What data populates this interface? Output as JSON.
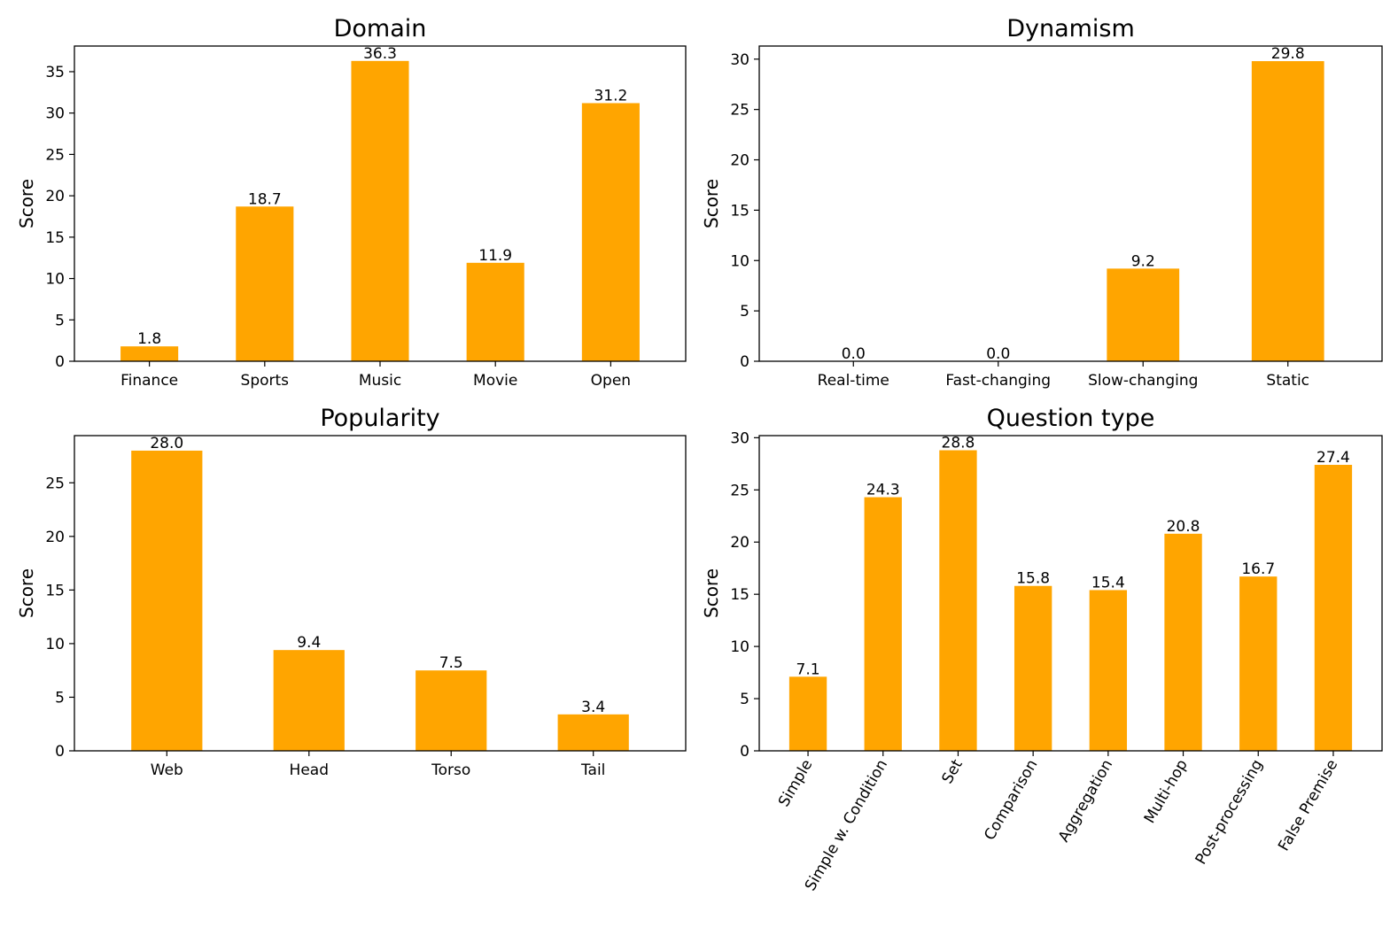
{
  "chart_data": [
    {
      "type": "bar",
      "title": "Domain",
      "xlabel": "",
      "ylabel": "Score",
      "categories": [
        "Finance",
        "Sports",
        "Music",
        "Movie",
        "Open"
      ],
      "values": [
        1.8,
        18.7,
        36.3,
        11.9,
        31.2
      ],
      "value_labels": [
        "1.8",
        "18.7",
        "36.3",
        "11.9",
        "31.2"
      ],
      "ylim": [
        0,
        38.1
      ],
      "yticks": [
        0,
        5,
        10,
        15,
        20,
        25,
        30,
        35
      ],
      "xtick_rotation": 0,
      "bar_color": "#FFA500",
      "grid": false,
      "legend": "none"
    },
    {
      "type": "bar",
      "title": "Dynamism",
      "xlabel": "",
      "ylabel": "Score",
      "categories": [
        "Real-time",
        "Fast-changing",
        "Slow-changing",
        "Static"
      ],
      "values": [
        0.0,
        0.0,
        9.2,
        29.8
      ],
      "value_labels": [
        "0.0",
        "0.0",
        "9.2",
        "29.8"
      ],
      "ylim": [
        0,
        31.3
      ],
      "yticks": [
        0,
        5,
        10,
        15,
        20,
        25,
        30
      ],
      "xtick_rotation": 0,
      "bar_color": "#FFA500",
      "grid": false,
      "legend": "none"
    },
    {
      "type": "bar",
      "title": "Popularity",
      "xlabel": "",
      "ylabel": "Score",
      "categories": [
        "Web",
        "Head",
        "Torso",
        "Tail"
      ],
      "values": [
        28.0,
        9.4,
        7.5,
        3.4
      ],
      "value_labels": [
        "28.0",
        "9.4",
        "7.5",
        "3.4"
      ],
      "ylim": [
        0,
        29.4
      ],
      "yticks": [
        0,
        5,
        10,
        15,
        20,
        25
      ],
      "xtick_rotation": 0,
      "bar_color": "#FFA500",
      "grid": false,
      "legend": "none"
    },
    {
      "type": "bar",
      "title": "Question type",
      "xlabel": "",
      "ylabel": "Score",
      "categories": [
        "Simple",
        "Simple w. Condition",
        "Set",
        "Comparison",
        "Aggregation",
        "Multi-hop",
        "Post-processing",
        "False Premise"
      ],
      "values": [
        7.1,
        24.3,
        28.8,
        15.8,
        15.4,
        20.8,
        16.7,
        27.4
      ],
      "value_labels": [
        "7.1",
        "24.3",
        "28.8",
        "15.8",
        "15.4",
        "20.8",
        "16.7",
        "27.4"
      ],
      "ylim": [
        0,
        30.2
      ],
      "yticks": [
        0,
        5,
        10,
        15,
        20,
        25,
        30
      ],
      "xtick_rotation": -60,
      "bar_color": "#FFA500",
      "grid": false,
      "legend": "none"
    }
  ]
}
